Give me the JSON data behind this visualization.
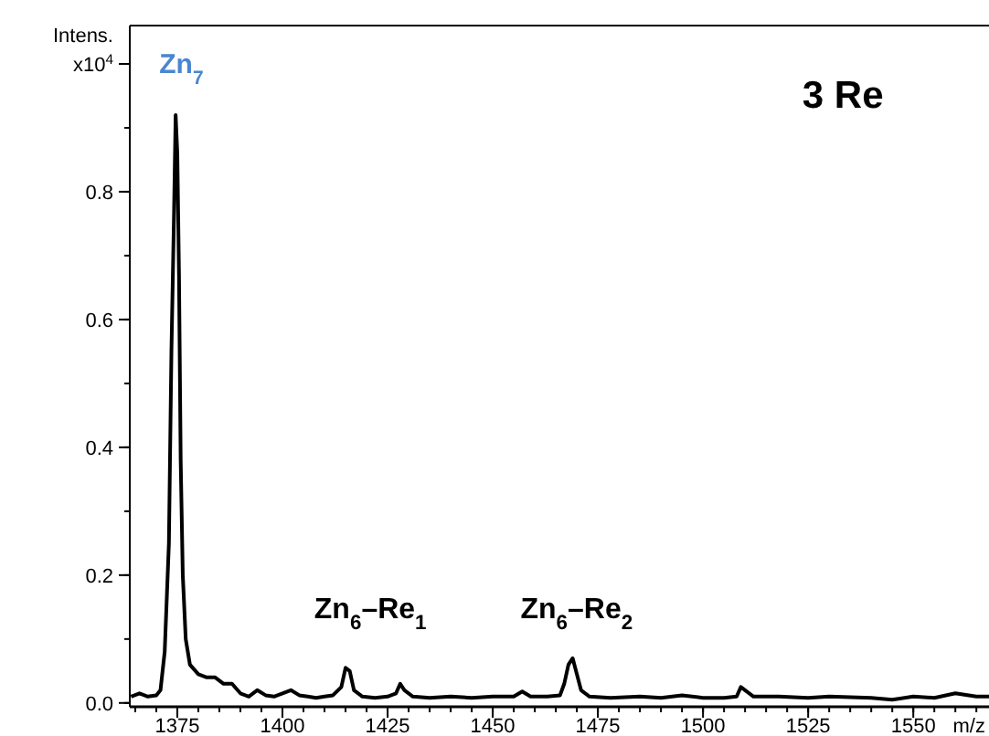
{
  "chart_data": {
    "type": "line",
    "xlabel": "m/z",
    "ylabel": "Intens.",
    "xlim": [
      1363.7,
      1568
    ],
    "ylim": [
      -0.006,
      1.06
    ],
    "xticks": [
      1375,
      1400,
      1425,
      1450,
      1475,
      1500,
      1525,
      1550
    ],
    "yticks": [
      {
        "value": 0,
        "label": "0.0"
      },
      {
        "value": 0.2,
        "label": "0.2"
      },
      {
        "value": 0.4,
        "label": "0.4"
      },
      {
        "value": 0.6,
        "label": "0.6"
      },
      {
        "value": 0.8,
        "label": "0.8"
      },
      {
        "value": 1.0,
        "label": "x10$^{4}$"
      }
    ],
    "series": [
      {
        "color": "#000000",
        "x": [
          1364,
          1366,
          1368,
          1370,
          1371,
          1372,
          1373,
          1373.6,
          1374.2,
          1374.6,
          1375.0,
          1375.4,
          1375.8,
          1376.3,
          1377,
          1378,
          1380,
          1382,
          1384,
          1386,
          1388,
          1390,
          1392,
          1394,
          1396,
          1398,
          1400,
          1402,
          1404,
          1406,
          1408,
          1410,
          1412,
          1414,
          1415,
          1416,
          1417,
          1419,
          1422,
          1425,
          1427,
          1428,
          1429,
          1431,
          1435,
          1440,
          1445,
          1450,
          1455,
          1457,
          1459,
          1463,
          1466,
          1467,
          1468,
          1469,
          1470,
          1471,
          1473,
          1478,
          1485,
          1490,
          1495,
          1500,
          1505,
          1508,
          1509,
          1510,
          1512,
          1518,
          1525,
          1530,
          1540,
          1545,
          1550,
          1555,
          1560,
          1565,
          1568
        ],
        "values": [
          0.01,
          0.015,
          0.01,
          0.012,
          0.02,
          0.08,
          0.25,
          0.55,
          0.76,
          0.92,
          0.86,
          0.67,
          0.38,
          0.2,
          0.1,
          0.06,
          0.045,
          0.04,
          0.04,
          0.03,
          0.03,
          0.015,
          0.01,
          0.02,
          0.012,
          0.01,
          0.015,
          0.02,
          0.012,
          0.01,
          0.008,
          0.01,
          0.012,
          0.025,
          0.055,
          0.05,
          0.02,
          0.01,
          0.008,
          0.01,
          0.015,
          0.03,
          0.02,
          0.01,
          0.008,
          0.01,
          0.008,
          0.01,
          0.01,
          0.018,
          0.01,
          0.01,
          0.012,
          0.03,
          0.06,
          0.07,
          0.045,
          0.02,
          0.01,
          0.008,
          0.01,
          0.008,
          0.012,
          0.008,
          0.008,
          0.01,
          0.025,
          0.02,
          0.01,
          0.01,
          0.008,
          0.01,
          0.008,
          0.005,
          0.01,
          0.008,
          0.015,
          0.01,
          0.01
        ]
      }
    ],
    "annotations": [
      "Zn$_{7}$",
      "Zn$_{6}$–Re$_{1}$",
      "Zn$_{6}$–Re$_{2}$",
      "3 Re"
    ]
  }
}
